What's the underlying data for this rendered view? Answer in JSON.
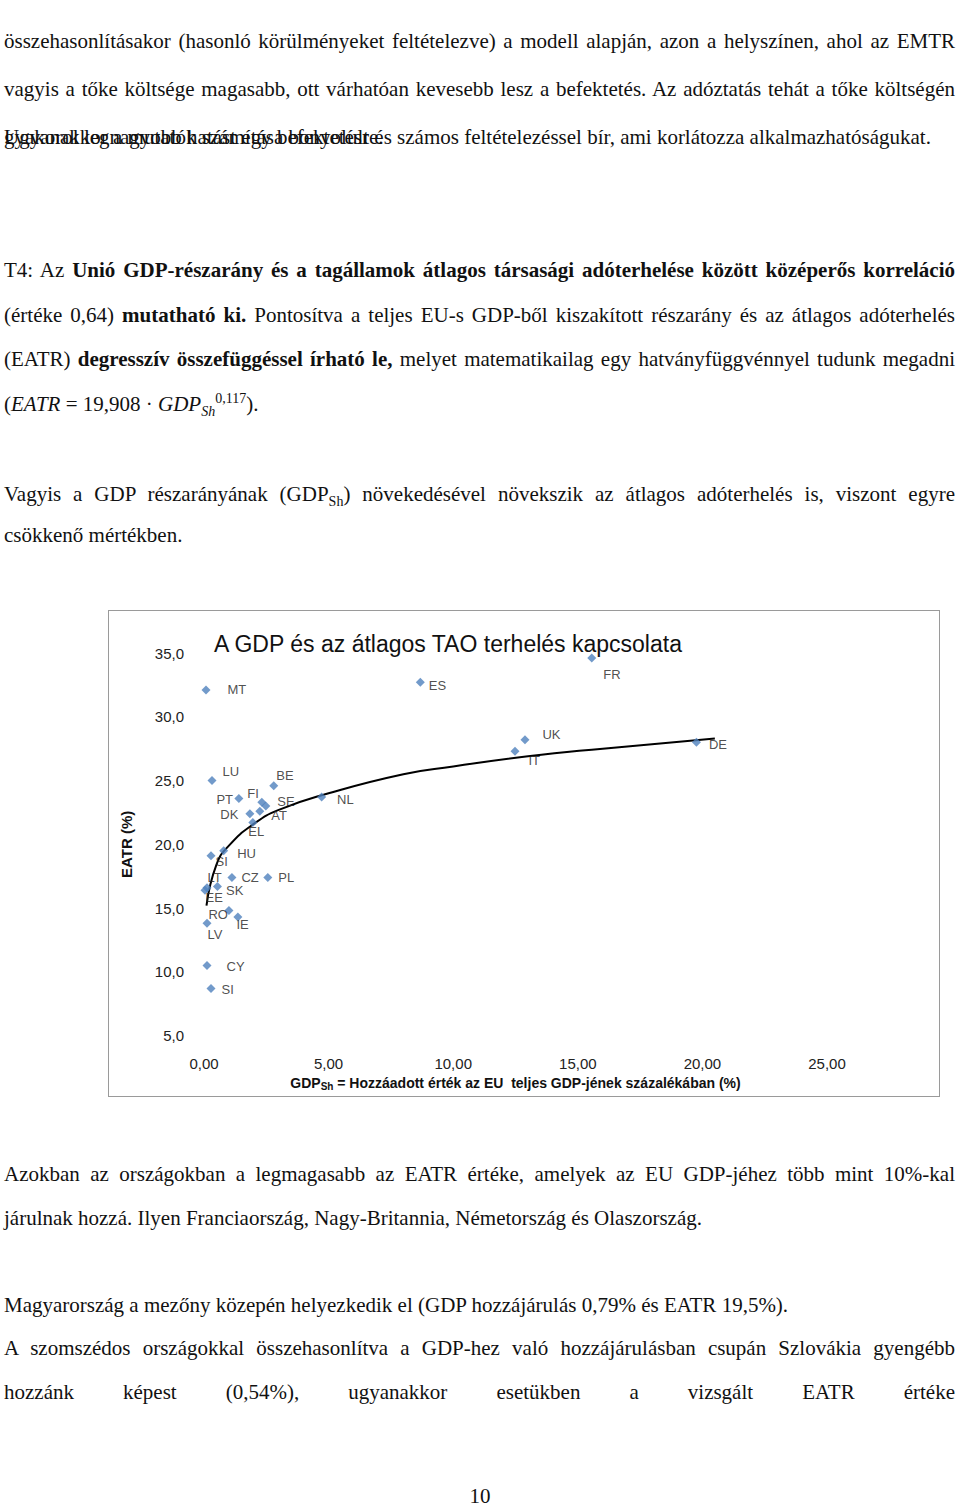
{
  "document": {
    "paragraphs_before": [
      [
        {
          "text": "összehasonlításakor (hasonló körülményeket feltételezve) a modell alapján, azon a helyszínen, ahol az EMTR vagyis a tőke költsége magasabb, ott várhatóan kevesebb lesz a befektetés. Az adóztatás tehát a tőke költségén gyakorol legnagyobb hatást egy befektetésre."
        }
      ],
      [
        {
          "text": "Ugyanakkor a mutatók számítása bonyolult és számos feltételezéssel bír, ami korlátozza alkalmazhatóságukat."
        }
      ],
      [
        {
          "text": "T4: Az "
        },
        {
          "text": "Unió GDP-részarány és a tagállamok átlagos társasági adóterhelése között középerős korreláció",
          "bold": true
        },
        {
          "text": " (értéke 0,64) "
        },
        {
          "text": "mutatható ki.",
          "bold": true
        },
        {
          "text": " Pontosítva a teljes EU-s GDP-ből kiszakított részarány és az átlagos adóterhelés (EATR) "
        },
        {
          "text": "degresszív összefüggéssel írható le,",
          "bold": true
        },
        {
          "text": " melyet matematikailag egy hatványfüggvénnyel tudunk megadni ("
        },
        {
          "text": "EATR",
          "italic": true
        },
        {
          "text": " = 19,908 · "
        },
        {
          "text": "GDP",
          "italic": true
        },
        {
          "text": "Sh",
          "italic": true,
          "sub": true
        },
        {
          "text": "0,117",
          "sup": true
        },
        {
          "text": ")."
        }
      ],
      [
        {
          "text": "Vagyis a GDP részarányának (GDP"
        },
        {
          "text": "Sh",
          "sub": true
        },
        {
          "text": ") növekedésével növekszik az átlagos adóterhelés is, viszont egyre csökkenő mértékben."
        }
      ]
    ],
    "paragraphs_after": [
      [
        {
          "text": "Azokban az országokban a legmagasabb az EATR értéke, amelyek az EU GDP-jéhez több mint 10%-kal járulnak hozzá. Ilyen Franciaország, Nagy-Britannia, Németország és Olaszország."
        }
      ],
      [
        {
          "text": "Magyarország a mezőny közepén helyezkedik el (GDP hozzájárulás 0,79% és EATR 19,5%)."
        }
      ],
      [
        {
          "text": "A szomszédos országokkal összehasonlítva a GDP-hez való hozzájárulásban csupán Szlovákia gyengébb hozzánk képest (0,54%), ugyanakkor esetükben a vizsgált EATR értéke"
        }
      ]
    ],
    "page_number": "10"
  },
  "chart_data": {
    "type": "scatter",
    "title": "A GDP és az átlagos TAO terhelés kapcsolata",
    "y_label": "EATR (%)",
    "x_label_parts": [
      {
        "text": "GDP"
      },
      {
        "text": "Sh",
        "sub": true
      },
      {
        "text": " = Hozzáadott érték az EU  teljes GDP-jének százalékában (%)"
      }
    ],
    "series": [
      {
        "type": "scatter",
        "marker": "diamond",
        "color": "#4f81bd",
        "labels": [
          "MT",
          "ES",
          "FR",
          "UK",
          "IT",
          "DE",
          "LU",
          "BE",
          "PT",
          "FI",
          "SE",
          "DK",
          "AT",
          "EL",
          "NL",
          "HU",
          "SI",
          "LT",
          "CZ",
          "PL",
          "SK",
          "EE",
          "RO",
          "IE",
          "LV",
          "CY",
          "SI"
        ],
        "x": [
          0.08,
          8.68,
          15.56,
          12.88,
          12.48,
          19.76,
          0.32,
          2.8,
          1.4,
          2.32,
          2.48,
          1.84,
          2.24,
          1.96,
          4.72,
          0.79,
          0.28,
          0.12,
          1.12,
          2.56,
          0.54,
          0.04,
          1.0,
          1.36,
          0.12,
          0.12,
          0.28
        ],
        "values": [
          32.1,
          32.7,
          34.6,
          28.2,
          27.3,
          28.0,
          25.0,
          24.6,
          23.6,
          23.3,
          23.0,
          22.4,
          22.6,
          21.7,
          23.7,
          19.5,
          19.1,
          16.6,
          17.4,
          17.4,
          16.7,
          16.4,
          14.8,
          14.3,
          13.8,
          10.5,
          8.7
        ]
      },
      {
        "type": "line",
        "color": "#000000",
        "line_style": "solid",
        "marker": "none",
        "x": [
          0.1,
          0.5,
          1,
          2,
          3,
          5,
          8,
          10,
          13,
          16,
          20.5
        ],
        "values": [
          15.2,
          18.4,
          19.9,
          21.6,
          22.7,
          24.0,
          25.5,
          26.1,
          26.9,
          27.5,
          28.3
        ]
      }
    ],
    "xlim": [
      0,
      25
    ],
    "xticks": [
      {
        "value": 0,
        "label": "0,00"
      },
      {
        "value": 5,
        "label": "5,00"
      },
      {
        "value": 10,
        "label": "10,00"
      },
      {
        "value": 15,
        "label": "15,00"
      },
      {
        "value": 20,
        "label": "20,00"
      },
      {
        "value": 25,
        "label": "25,00"
      }
    ],
    "ylim": [
      5,
      35
    ],
    "yticks": [
      {
        "value": 5,
        "label": "5,0"
      },
      {
        "value": 10,
        "label": "10,0"
      },
      {
        "value": 15,
        "label": "15,0"
      },
      {
        "value": 20,
        "label": "20,0"
      },
      {
        "value": 25,
        "label": "25,0"
      },
      {
        "value": 30,
        "label": "30,0"
      },
      {
        "value": 35,
        "label": "35,0"
      }
    ],
    "grid": false
  }
}
